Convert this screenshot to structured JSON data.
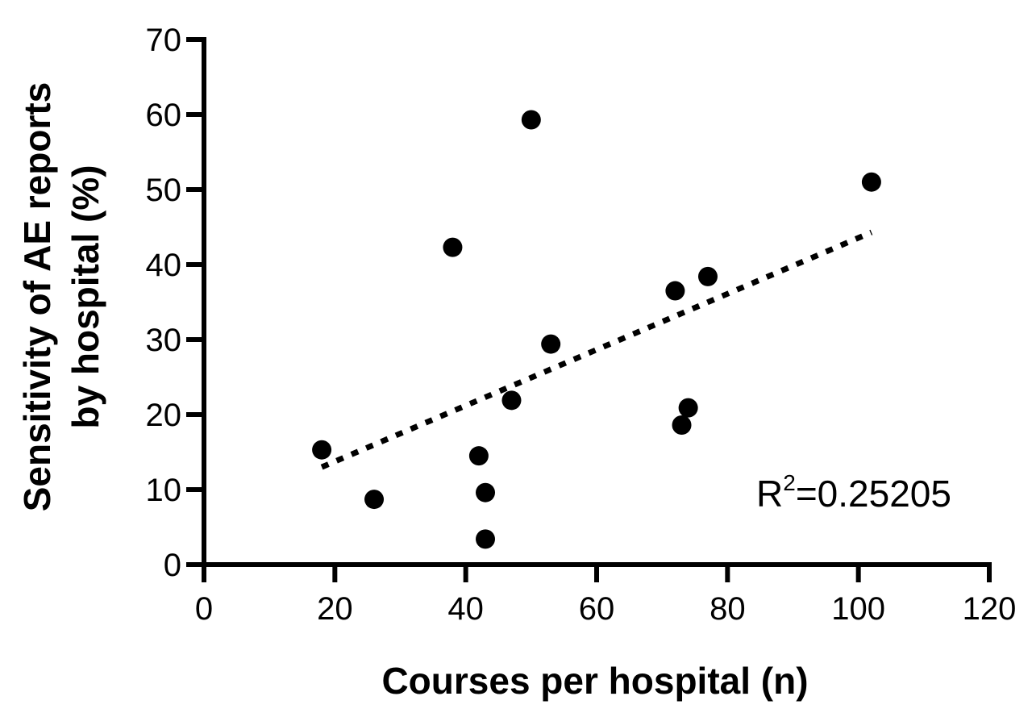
{
  "chart_data": {
    "type": "scatter",
    "title": "",
    "xlabel": "Courses per hospital (n)",
    "ylabel_lines": [
      "Sensitivity of AE reports",
      "by hospital (%)"
    ],
    "xlim": [
      0,
      120
    ],
    "ylim": [
      0,
      70
    ],
    "x_ticks": [
      0,
      20,
      40,
      60,
      80,
      100,
      120
    ],
    "y_ticks": [
      0,
      10,
      20,
      30,
      40,
      50,
      60,
      70
    ],
    "grid": false,
    "legend": "none",
    "points": [
      {
        "x": 18,
        "y": 15.3
      },
      {
        "x": 26,
        "y": 8.7
      },
      {
        "x": 38,
        "y": 42.3
      },
      {
        "x": 42,
        "y": 14.5
      },
      {
        "x": 43,
        "y": 9.6
      },
      {
        "x": 43,
        "y": 3.4
      },
      {
        "x": 47,
        "y": 21.9
      },
      {
        "x": 50,
        "y": 59.3
      },
      {
        "x": 53,
        "y": 29.4
      },
      {
        "x": 72,
        "y": 36.5
      },
      {
        "x": 73,
        "y": 18.6
      },
      {
        "x": 74,
        "y": 20.9
      },
      {
        "x": 77,
        "y": 38.4
      },
      {
        "x": 102,
        "y": 51.0
      }
    ],
    "trendline": {
      "style": "dotted",
      "start": {
        "x": 18,
        "y": 13.0
      },
      "end": {
        "x": 102,
        "y": 44.3
      }
    },
    "annotation": {
      "base": "R",
      "superscript": "2",
      "value": "=0.25205"
    },
    "colors": {
      "marker": "#000000",
      "axis": "#000000",
      "trendline": "#000000"
    }
  }
}
